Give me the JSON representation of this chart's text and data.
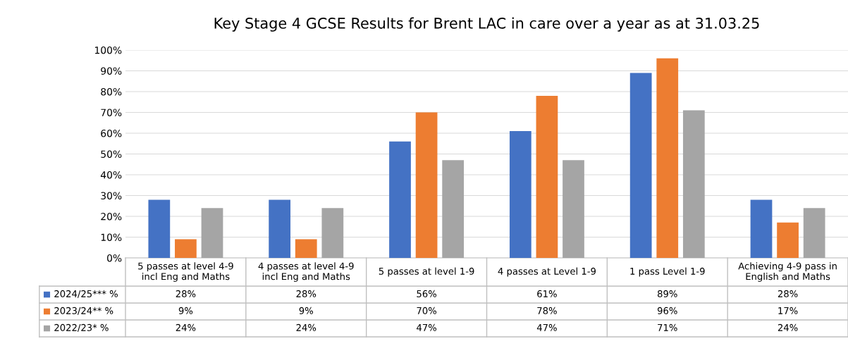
{
  "chart_data": {
    "type": "bar",
    "title": "Key Stage 4 GCSE Results for Brent LAC in care over a year as at 31.03.25",
    "categories": [
      "5 passes at level 4-9\nincl Eng and Maths",
      "4 passes at level 4-9\nincl Eng and Maths",
      "5 passes at level 1-9",
      "4 passes at Level 1-9",
      "1 pass Level 1-9",
      "Achieving 4-9 pass in\nEnglish and Maths"
    ],
    "series": [
      {
        "name": "2024/25*** %",
        "color": "#4472c4",
        "values": [
          28,
          28,
          56,
          61,
          89,
          28
        ],
        "value_labels": [
          "28%",
          "28%",
          "56%",
          "61%",
          "89%",
          "28%"
        ]
      },
      {
        "name": "2023/24** %",
        "color": "#ed7d31",
        "values": [
          9,
          9,
          70,
          78,
          96,
          17
        ],
        "value_labels": [
          "9%",
          "9%",
          "70%",
          "78%",
          "96%",
          "17%"
        ]
      },
      {
        "name": "2022/23* %",
        "color": "#a5a5a5",
        "values": [
          24,
          24,
          47,
          47,
          71,
          24
        ],
        "value_labels": [
          "24%",
          "24%",
          "47%",
          "47%",
          "71%",
          "24%"
        ]
      }
    ],
    "ylim": [
      0,
      100
    ],
    "yticks": [
      {
        "value": 0,
        "label": "0%"
      },
      {
        "value": 10,
        "label": "10%"
      },
      {
        "value": 20,
        "label": "20%"
      },
      {
        "value": 30,
        "label": "30%"
      },
      {
        "value": 40,
        "label": "40%"
      },
      {
        "value": 50,
        "label": "50%"
      },
      {
        "value": 60,
        "label": "60%"
      },
      {
        "value": 70,
        "label": "70%"
      },
      {
        "value": 80,
        "label": "80%"
      },
      {
        "value": 90,
        "label": "90%"
      },
      {
        "value": 100,
        "label": "100%"
      }
    ],
    "grid": "y",
    "legend": "bottom"
  }
}
